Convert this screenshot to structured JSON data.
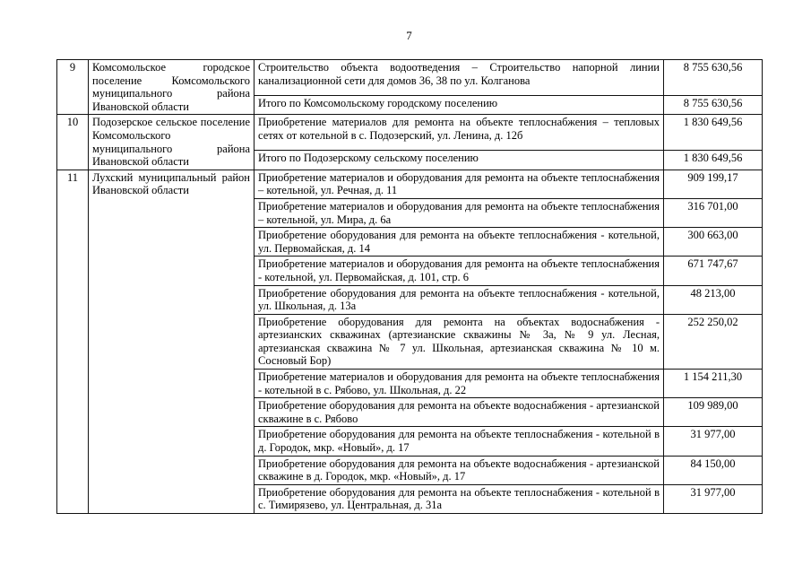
{
  "page": {
    "number": "7"
  },
  "table": {
    "groups": [
      {
        "num": "9",
        "settlement": "Комсомольское городское поселение Комсомольского муниципального района Ивановской области",
        "rows": [
          {
            "text": "Строительство объекта водоотведения – Строительство напорной линии канализационной сети для домов 36, 38 по ул. Колганова",
            "amount": "8 755 630,56",
            "total": false
          },
          {
            "text": "Итого по Комсомольскому городскому поселению",
            "amount": "8 755 630,56",
            "total": true
          }
        ]
      },
      {
        "num": "10",
        "settlement": "Подозерское сельское поселение Комсомольского муниципального района Ивановской области",
        "rows": [
          {
            "text": "Приобретение материалов для ремонта на объекте теплоснабжения – тепловых сетях от котельной в с. Подозерский, ул. Ленина, д. 12б",
            "amount": "1 830 649,56",
            "total": false
          },
          {
            "text": "Итого по Подозерскому сельскому поселению",
            "amount": "1 830 649,56",
            "total": true
          }
        ]
      },
      {
        "num": "11",
        "settlement": "Лухский муниципальный район Ивановской области",
        "rows": [
          {
            "text": "Приобретение материалов и оборудования для ремонта на объекте теплоснабжения – котельной, ул. Речная, д. 11",
            "amount": "909 199,17",
            "total": false
          },
          {
            "text": "Приобретение материалов и оборудования для ремонта на объекте теплоснабжения – котельной, ул. Мира, д. 6а",
            "amount": "316 701,00",
            "total": false
          },
          {
            "text": "Приобретение оборудования для ремонта на объекте теплоснабжения - котельной, ул. Первомайская, д. 14",
            "amount": "300 663,00",
            "total": false
          },
          {
            "text": "Приобретение материалов и оборудования для ремонта на объекте теплоснабжения - котельной, ул. Первомайская, д. 101, стр. 6",
            "amount": "671 747,67",
            "total": false
          },
          {
            "text": "Приобретение оборудования для ремонта на объекте теплоснабжения - котельной, ул. Школьная, д. 13а",
            "amount": "48 213,00",
            "total": false
          },
          {
            "text": "Приобретение оборудования для ремонта на объектах водоснабжения - артезианских скважинах (артезианские скважины № 3а, № 9 ул. Лесная, артезианская скважина № 7 ул. Школьная, артезианская скважина № 10 м. Сосновый Бор)",
            "amount": "252 250,02",
            "total": false
          },
          {
            "text": "Приобретение материалов и оборудования для ремонта на объекте теплоснабжения - котельной в с. Рябово, ул. Школьная, д. 22",
            "amount": "1 154 211,30",
            "total": false
          },
          {
            "text": "Приобретение оборудования для ремонта на объекте водоснабжения - артезианской скважине в с. Рябово",
            "amount": "109 989,00",
            "total": false
          },
          {
            "text": "Приобретение оборудования для ремонта на объекте теплоснабжения - котельной в д. Городок, мкр. «Новый», д. 17",
            "amount": "31 977,00",
            "total": false
          },
          {
            "text": "Приобретение оборудования для ремонта на объекте водоснабжения - артезианской скважине в д. Городок, мкр. «Новый», д. 17",
            "amount": "84 150,00",
            "total": false
          },
          {
            "text": "Приобретение оборудования для ремонта на объекте теплоснабжения - котельной в с. Тимирязево, ул. Центральная, д. 31а",
            "amount": "31 977,00",
            "total": false
          }
        ]
      }
    ]
  }
}
